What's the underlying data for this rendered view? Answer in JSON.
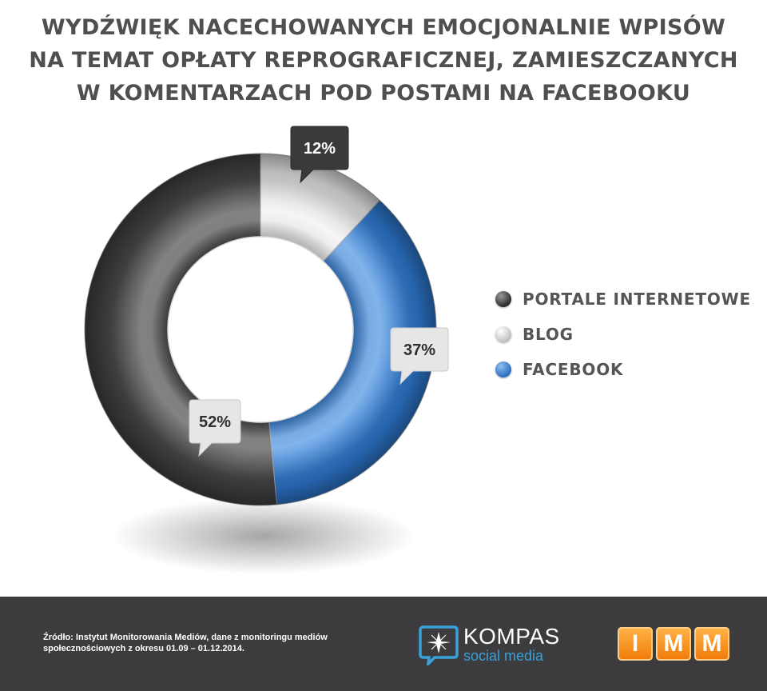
{
  "title_lines": [
    "WYDŹWIĘK NACECHOWANYCH EMOCJONALNIE WPISÓW",
    "NA TEMAT OPŁATY REPROGRAFICZNEJ, ZAMIESZCZANYCH",
    "W KOMENTARZACH POD POSTAMI NA FACEBOOKU"
  ],
  "chart_data": {
    "type": "pie",
    "variant": "donut",
    "categories": [
      "PORTALE INTERNETOWE",
      "BLOG",
      "FACEBOOK"
    ],
    "values": [
      52,
      12,
      37
    ],
    "labels": [
      "52%",
      "12%",
      "37%"
    ],
    "colors": [
      "#3d3d3f",
      "#cfd0d2",
      "#2a6fc0"
    ],
    "legend_position": "right"
  },
  "footer": {
    "source_lines": [
      "Źródło: Instytut Monitorowania Mediów, dane z monitoringu mediów",
      "społecznościowych z okresu 01.09 – 01.12.2014."
    ],
    "kompas_name": "KOMPAS",
    "kompas_sub": "social media",
    "imm_letters": [
      "I",
      "M",
      "M"
    ]
  }
}
